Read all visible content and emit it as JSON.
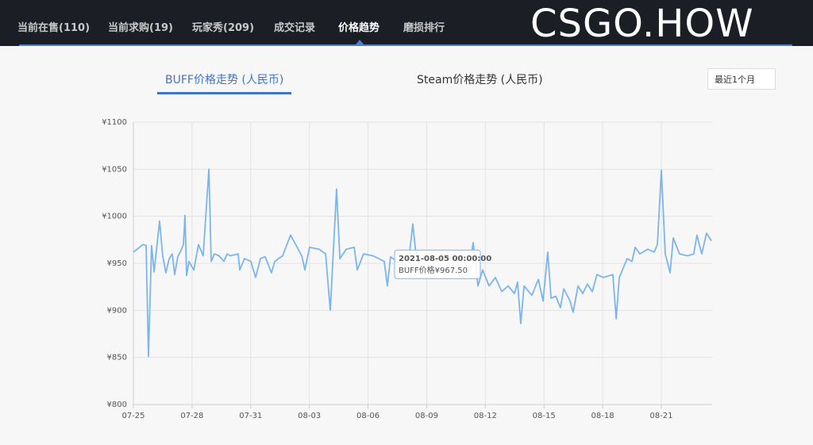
{
  "nav": {
    "items": [
      "当前在售(110)",
      "当前求购(19)",
      "玩家秀(209)",
      "成交记录",
      "价格趋势",
      "磨损排行"
    ],
    "active": 4
  },
  "logo": "CSGO.HOW",
  "tabs": {
    "items": [
      "BUFF价格走势 (人民币)",
      "Steam价格走势 (人民币)"
    ],
    "active": 0
  },
  "dropdown": {
    "selected": "最近1个月"
  },
  "chart_data": {
    "type": "line",
    "color": "#7cb5ec",
    "grid": true,
    "x": [
      0,
      0.49,
      0.65,
      0.77,
      0.93,
      1.06,
      1.34,
      1.5,
      1.66,
      1.83,
      1.99,
      2.11,
      2.27,
      2.44,
      2.56,
      2.64,
      2.72,
      2.84,
      3.09,
      3.33,
      3.57,
      3.86,
      3.98,
      4.14,
      4.38,
      4.63,
      4.79,
      4.95,
      5.36,
      5.44,
      5.68,
      6.01,
      6.25,
      6.5,
      6.74,
      7.06,
      7.23,
      7.63,
      8.04,
      8.61,
      8.77,
      9.01,
      9.5,
      9.83,
      10.07,
      10.39,
      10.56,
      10.88,
      11.29,
      11.45,
      11.77,
      12.26,
      12.83,
      12.99,
      13.15,
      13.48,
      13.72,
      13.97,
      14.13,
      14.29,
      14.45,
      14.7,
      15.1,
      15.51,
      15.92,
      16.32,
      16.73,
      17.13,
      17.38,
      17.62,
      17.86,
      18.19,
      18.51,
      18.84,
      19.16,
      19.49,
      19.65,
      19.81,
      19.98,
      20.38,
      20.71,
      20.95,
      21.19,
      21.36,
      21.6,
      21.84,
      22.01,
      22.33,
      22.49,
      22.74,
      22.98,
      23.22,
      23.47,
      23.71,
      24.04,
      24.52,
      24.69,
      24.85,
      25.25,
      25.5,
      25.66,
      25.9,
      26.31,
      26.63,
      26.8,
      27,
      27.2,
      27.45,
      27.61,
      27.93,
      28.34,
      28.66,
      28.82,
      29.07,
      29.31,
      29.56
    ],
    "values": [
      962,
      970,
      969,
      851,
      969,
      941,
      995,
      958,
      940,
      955,
      960,
      938,
      957,
      964,
      970,
      1001,
      937,
      952,
      943,
      970,
      958,
      1050,
      952,
      960,
      958,
      952,
      960,
      958,
      960,
      943,
      955,
      952,
      935,
      955,
      957,
      940,
      952,
      958,
      980,
      958,
      943,
      967,
      965,
      960,
      900,
      1029,
      955,
      965,
      967,
      943,
      960,
      958,
      952,
      926,
      957,
      952,
      952,
      952,
      962,
      992,
      960,
      943,
      945,
      952,
      938,
      952,
      935,
      938,
      972,
      926,
      943,
      926,
      935,
      920,
      926,
      918,
      930,
      886,
      926,
      916,
      933,
      910,
      962,
      913,
      915,
      903,
      923,
      910,
      898,
      926,
      918,
      928,
      920,
      938,
      935,
      938,
      891,
      935,
      955,
      952,
      967,
      960,
      965,
      962,
      970,
      1049,
      960,
      940,
      977,
      960,
      958,
      960,
      980,
      960,
      982,
      974
    ],
    "xlim": [
      0,
      29.6
    ],
    "ylim": [
      800,
      1100
    ],
    "xticks": [
      {
        "value": 0,
        "label": "07-25"
      },
      {
        "value": 3,
        "label": "07-28"
      },
      {
        "value": 6,
        "label": "07-31"
      },
      {
        "value": 9,
        "label": "08-03"
      },
      {
        "value": 12,
        "label": "08-06"
      },
      {
        "value": 15,
        "label": "08-09"
      },
      {
        "value": 18,
        "label": "08-12"
      },
      {
        "value": 21,
        "label": "08-15"
      },
      {
        "value": 24,
        "label": "08-18"
      },
      {
        "value": 27,
        "label": "08-21"
      }
    ],
    "yticks": [
      {
        "value": 800,
        "label": "¥800"
      },
      {
        "value": 850,
        "label": "¥850"
      },
      {
        "value": 900,
        "label": "¥900"
      },
      {
        "value": 950,
        "label": "¥950"
      },
      {
        "value": 1000,
        "label": "¥1000"
      },
      {
        "value": 1050,
        "label": "¥1050"
      },
      {
        "value": 1100,
        "label": "¥1100"
      }
    ],
    "tooltip": {
      "title": "2021-08-05 00:00:00",
      "label": "BUFF价格¥967.50",
      "value": 967.5
    }
  }
}
